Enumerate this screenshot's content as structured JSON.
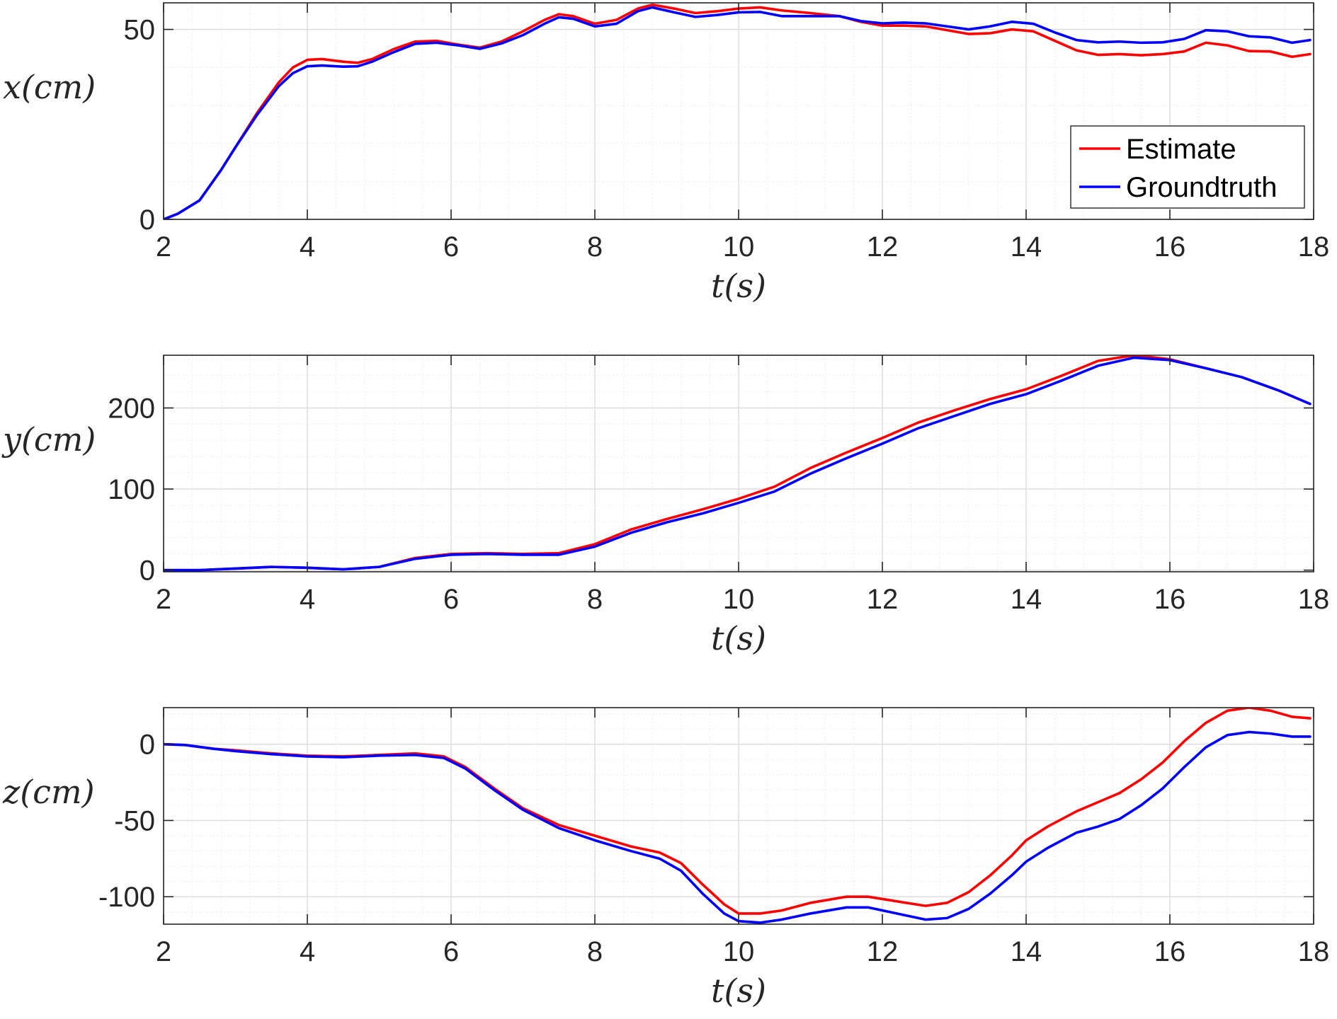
{
  "figure": {
    "background": "#ffffff",
    "axes_color": "#262626",
    "grid_major_color": "#dcdcdc",
    "grid_minor_color": "#ececec"
  },
  "legend": {
    "entries": [
      {
        "label": "Estimate",
        "color": "#ff0000"
      },
      {
        "label": "Groundtruth",
        "color": "#0000ff"
      }
    ],
    "placement": "inside-lower-right of first panel"
  },
  "chart_data": [
    {
      "type": "line",
      "xlabel": "t(s)",
      "ylabel": "x(cm)",
      "xlim": [
        2,
        18
      ],
      "ylim": [
        0,
        57
      ],
      "xticks": [
        2,
        4,
        6,
        8,
        10,
        12,
        14,
        16,
        18
      ],
      "yticks": [
        0,
        50
      ],
      "grid": true,
      "minor_grid": true,
      "legend": true,
      "series": [
        {
          "name": "Estimate",
          "color": "#ff0000",
          "x": [
            2.0,
            2.2,
            2.5,
            2.8,
            3.0,
            3.3,
            3.6,
            3.8,
            4.0,
            4.2,
            4.5,
            4.7,
            4.9,
            5.2,
            5.5,
            5.8,
            6.1,
            6.4,
            6.7,
            7.0,
            7.3,
            7.5,
            7.7,
            8.0,
            8.3,
            8.6,
            8.8,
            9.1,
            9.4,
            9.7,
            10.0,
            10.3,
            10.6,
            11.0,
            11.4,
            11.7,
            12.0,
            12.3,
            12.6,
            12.9,
            13.2,
            13.5,
            13.8,
            14.1,
            14.4,
            14.7,
            15.0,
            15.3,
            15.6,
            15.9,
            16.2,
            16.5,
            16.8,
            17.1,
            17.4,
            17.7,
            17.95
          ],
          "values": [
            0,
            1.5,
            5,
            13,
            19,
            28,
            36,
            40,
            42,
            42.2,
            41.5,
            41.2,
            42.2,
            44.8,
            46.8,
            47,
            46,
            45.2,
            46.8,
            49.5,
            52.5,
            54,
            53.5,
            51.5,
            52.5,
            55.5,
            56.5,
            55.5,
            54.3,
            54.8,
            55.5,
            55.8,
            55,
            54.3,
            53.5,
            52,
            51,
            51,
            50.8,
            49.8,
            48.8,
            49,
            50,
            49.5,
            47,
            44.5,
            43.3,
            43.5,
            43.2,
            43.5,
            44.2,
            46.5,
            45.8,
            44.3,
            44.2,
            42.8,
            43.5
          ]
        },
        {
          "name": "Groundtruth",
          "color": "#0000ff",
          "x": [
            2.0,
            2.2,
            2.5,
            2.8,
            3.0,
            3.3,
            3.6,
            3.8,
            4.0,
            4.2,
            4.5,
            4.7,
            4.9,
            5.2,
            5.5,
            5.8,
            6.1,
            6.4,
            6.7,
            7.0,
            7.3,
            7.5,
            7.7,
            8.0,
            8.3,
            8.6,
            8.8,
            9.1,
            9.4,
            9.7,
            10.0,
            10.3,
            10.6,
            11.0,
            11.4,
            11.7,
            12.0,
            12.3,
            12.6,
            12.9,
            13.2,
            13.5,
            13.8,
            14.1,
            14.4,
            14.7,
            15.0,
            15.3,
            15.6,
            15.9,
            16.2,
            16.5,
            16.8,
            17.1,
            17.4,
            17.7,
            17.95
          ],
          "values": [
            0,
            1.5,
            5,
            13,
            19,
            27.5,
            35,
            38.5,
            40.3,
            40.5,
            40.2,
            40.3,
            41.5,
            44,
            46.2,
            46.5,
            45.8,
            44.9,
            46.3,
            48.5,
            51.5,
            53.2,
            52.8,
            50.8,
            51.5,
            54.8,
            55.8,
            54.5,
            53.3,
            53.8,
            54.5,
            54.6,
            53.5,
            53.5,
            53.5,
            52.2,
            51.6,
            51.8,
            51.6,
            50.8,
            50,
            50.8,
            52,
            51.5,
            49.2,
            47.2,
            46.6,
            46.8,
            46.5,
            46.6,
            47.5,
            49.8,
            49.5,
            48.2,
            47.9,
            46.5,
            47.2
          ]
        }
      ]
    },
    {
      "type": "line",
      "xlabel": "t(s)",
      "ylabel": "y(cm)",
      "xlim": [
        2,
        18
      ],
      "ylim": [
        -2,
        265
      ],
      "xticks": [
        2,
        4,
        6,
        8,
        10,
        12,
        14,
        16,
        18
      ],
      "yticks": [
        0,
        100,
        200
      ],
      "grid": true,
      "minor_grid": true,
      "legend": false,
      "series": [
        {
          "name": "Estimate",
          "color": "#ff0000",
          "x": [
            2.0,
            2.5,
            3.0,
            3.5,
            4.0,
            4.5,
            5.0,
            5.5,
            6.0,
            6.5,
            7.0,
            7.5,
            8.0,
            8.5,
            9.0,
            9.5,
            10.0,
            10.5,
            11.0,
            11.5,
            12.0,
            12.5,
            13.0,
            13.5,
            14.0,
            14.5,
            15.0,
            15.5,
            16.0,
            16.5,
            17.0,
            17.5,
            17.95
          ],
          "values": [
            0,
            0,
            2,
            4,
            3,
            1,
            4,
            15,
            20,
            21,
            20,
            21,
            32,
            50,
            63,
            75,
            88,
            103,
            126,
            145,
            163,
            182,
            197,
            211,
            223,
            240,
            258,
            265,
            260,
            249,
            238,
            222,
            205
          ]
        },
        {
          "name": "Groundtruth",
          "color": "#0000ff",
          "x": [
            2.0,
            2.5,
            3.0,
            3.5,
            4.0,
            4.5,
            5.0,
            5.5,
            6.0,
            6.5,
            7.0,
            7.5,
            8.0,
            8.5,
            9.0,
            9.5,
            10.0,
            10.5,
            11.0,
            11.5,
            12.0,
            12.5,
            13.0,
            13.5,
            14.0,
            14.5,
            15.0,
            15.5,
            16.0,
            16.5,
            17.0,
            17.5,
            17.95
          ],
          "values": [
            0,
            0,
            2,
            4,
            3,
            1,
            4,
            14,
            19,
            20,
            19,
            19,
            29,
            46,
            59,
            70,
            83,
            97,
            119,
            138,
            156,
            175,
            190,
            205,
            217,
            234,
            252,
            262,
            259,
            249,
            238,
            222,
            205
          ]
        }
      ]
    },
    {
      "type": "line",
      "xlabel": "t(s)",
      "ylabel": "z(cm)",
      "xlim": [
        2,
        18
      ],
      "ylim": [
        -118,
        24
      ],
      "xticks": [
        2,
        4,
        6,
        8,
        10,
        12,
        14,
        16,
        18
      ],
      "yticks": [
        -100,
        -50,
        0
      ],
      "grid": true,
      "minor_grid": true,
      "legend": false,
      "series": [
        {
          "name": "Estimate",
          "color": "#ff0000",
          "x": [
            2.0,
            2.3,
            2.7,
            3.0,
            3.5,
            4.0,
            4.5,
            5.0,
            5.5,
            5.9,
            6.2,
            6.6,
            7.0,
            7.5,
            8.0,
            8.5,
            8.9,
            9.2,
            9.5,
            9.8,
            10.0,
            10.3,
            10.6,
            11.0,
            11.5,
            11.8,
            12.2,
            12.6,
            12.9,
            13.2,
            13.5,
            13.8,
            14.0,
            14.3,
            14.7,
            15.0,
            15.3,
            15.6,
            15.9,
            16.2,
            16.5,
            16.8,
            17.1,
            17.4,
            17.7,
            17.95
          ],
          "values": [
            0,
            -0.5,
            -3,
            -4,
            -6,
            -7.5,
            -8,
            -7,
            -6,
            -8,
            -15,
            -29,
            -42,
            -53,
            -60,
            -67,
            -71,
            -78,
            -92,
            -105,
            -111,
            -111,
            -109,
            -104,
            -100,
            -100,
            -103,
            -106,
            -104,
            -97,
            -86,
            -73,
            -63,
            -54,
            -44,
            -38,
            -32,
            -23,
            -12,
            2,
            14,
            22,
            24,
            22,
            18,
            17
          ]
        },
        {
          "name": "Groundtruth",
          "color": "#0000ff",
          "x": [
            2.0,
            2.3,
            2.7,
            3.0,
            3.5,
            4.0,
            4.5,
            5.0,
            5.5,
            5.9,
            6.2,
            6.6,
            7.0,
            7.5,
            8.0,
            8.5,
            8.9,
            9.2,
            9.5,
            9.8,
            10.0,
            10.3,
            10.6,
            11.0,
            11.5,
            11.8,
            12.2,
            12.6,
            12.9,
            13.2,
            13.5,
            13.8,
            14.0,
            14.3,
            14.7,
            15.0,
            15.3,
            15.6,
            15.9,
            16.2,
            16.5,
            16.8,
            17.1,
            17.4,
            17.7,
            17.95
          ],
          "values": [
            0,
            -0.5,
            -3,
            -4.5,
            -6.5,
            -8,
            -8.5,
            -7.5,
            -7,
            -9,
            -16,
            -30,
            -43,
            -55,
            -63,
            -70,
            -75,
            -83,
            -98,
            -111,
            -116,
            -117,
            -115,
            -111,
            -107,
            -107,
            -111,
            -115,
            -114,
            -108,
            -98,
            -86,
            -77,
            -68,
            -58,
            -54,
            -49,
            -40,
            -29,
            -15,
            -2,
            6,
            8,
            7,
            5,
            5
          ]
        }
      ]
    }
  ]
}
